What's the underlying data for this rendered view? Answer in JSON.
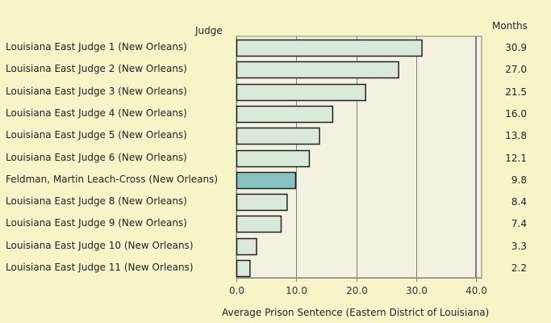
{
  "chart_data": {
    "type": "bar",
    "orientation": "horizontal",
    "title": "",
    "category_header": "Judge",
    "value_header": "Months",
    "xlabel": "Average Prison Sentence (Eastern District of Louisiana)",
    "ylabel": "Judge",
    "xlim": [
      0,
      40.8
    ],
    "xticks": [
      0,
      10,
      20,
      30,
      40
    ],
    "xtick_labels": [
      "0.0",
      "10.0",
      "20.0",
      "30.0",
      "40.0"
    ],
    "grid": true,
    "categories": [
      "Louisiana East Judge 1 (New Orleans)",
      "Louisiana East Judge 2 (New Orleans)",
      "Louisiana East Judge 3 (New Orleans)",
      "Louisiana East Judge 4 (New Orleans)",
      "Louisiana East Judge 5 (New Orleans)",
      "Louisiana East Judge 6 (New Orleans)",
      "Feldman, Martin Leach-Cross (New Orleans)",
      "Louisiana East Judge 8 (New Orleans)",
      "Louisiana East Judge 9 (New Orleans)",
      "Louisiana East Judge 10 (New Orleans)",
      "Louisiana East Judge 11 (New Orleans)"
    ],
    "values": [
      30.9,
      27.0,
      21.5,
      16.0,
      13.8,
      12.1,
      9.8,
      8.4,
      7.4,
      3.3,
      2.2
    ],
    "value_labels": [
      "30.9",
      "27.0",
      "21.5",
      "16.0",
      "13.8",
      "12.1",
      "9.8",
      "8.4",
      "7.4",
      "3.3",
      "2.2"
    ],
    "highlight_index": 6,
    "colors": {
      "background": "#f5f5c8",
      "plot_background": "#f3f1df",
      "bar": "#dbe9d9",
      "bar_highlight": "#87c2c0",
      "bar_border": "#222222",
      "grid": "#808080"
    }
  }
}
